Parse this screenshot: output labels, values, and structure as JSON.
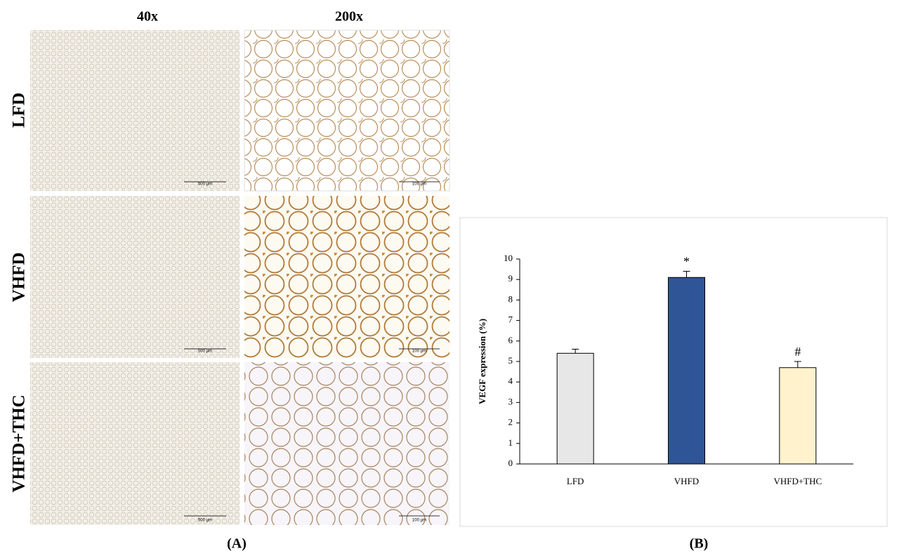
{
  "panel_a": {
    "label": "(A)",
    "columns": [
      "40x",
      "200x"
    ],
    "rows": [
      "LFD",
      "VHFD",
      "VHFD+THC"
    ],
    "scale_bars": [
      [
        "500 µm",
        "100 µm"
      ],
      [
        "500 µm",
        "100 µm"
      ],
      [
        "500 µm",
        "100 µm"
      ]
    ]
  },
  "chart_data": {
    "type": "bar",
    "panel_label": "(B)",
    "y_label": "VEGF expression (%)",
    "categories": [
      "LFD",
      "VHFD",
      "VHFD+THC"
    ],
    "values": [
      5.4,
      9.1,
      4.7
    ],
    "errors": [
      0.2,
      0.3,
      0.3
    ],
    "colors": [
      "#e7e7e7",
      "#2f5597",
      "#fff2cc"
    ],
    "value_annotations": [
      null,
      "*",
      "#"
    ],
    "ylim": [
      0,
      10
    ],
    "yticks": [
      0,
      1,
      2,
      3,
      4,
      5,
      6,
      7,
      8,
      9,
      10
    ],
    "grid": false
  }
}
